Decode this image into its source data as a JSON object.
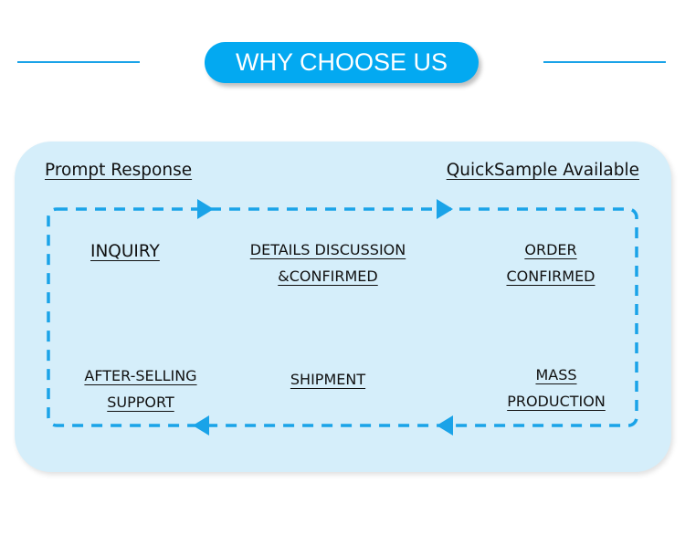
{
  "header": {
    "title": "WHY CHOOSE US"
  },
  "panel": {
    "top_left_label": "Prompt Response",
    "top_right_label": "QuickSample Available",
    "steps": [
      {
        "lines": [
          "INQUIRY"
        ]
      },
      {
        "lines": [
          "DETAILS DISCUSSION",
          "&CONFIRMED"
        ]
      },
      {
        "lines": [
          "ORDER",
          "CONFIRMED"
        ]
      },
      {
        "lines": [
          "MASS",
          "PRODUCTION"
        ]
      },
      {
        "lines": [
          "SHIPMENT"
        ]
      },
      {
        "lines": [
          "AFTER-SELLING",
          "SUPPORT"
        ]
      }
    ]
  },
  "colors": {
    "accent": "#03a9f1",
    "panel": "#d5eefa",
    "flow_line": "#1aa3e8"
  }
}
